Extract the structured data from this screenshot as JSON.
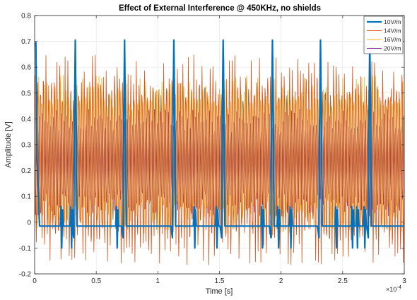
{
  "chart_data": {
    "type": "line",
    "title": "Effect of External Interference @ 450KHz, no shields",
    "xlabel": "Time [s]",
    "ylabel": "Amplitude [V]",
    "x_exponent_label": "×10",
    "x_exponent_power": "-4",
    "xlim": [
      0,
      3
    ],
    "ylim": [
      -0.2,
      0.8
    ],
    "x_tick_values": [
      0,
      0.5,
      1,
      1.5,
      2,
      2.5,
      3
    ],
    "x_tick_labels": [
      "0",
      "0.5",
      "1",
      "1.5",
      "2",
      "2.5",
      "3"
    ],
    "y_tick_values": [
      -0.2,
      -0.1,
      0,
      0.1,
      0.2,
      0.3,
      0.4,
      0.5,
      0.6,
      0.7,
      0.8
    ],
    "y_tick_labels": [
      "-0.2",
      "-0.1",
      "0",
      "0.1",
      "0.2",
      "0.3",
      "0.4",
      "0.5",
      "0.6",
      "0.7",
      "0.8"
    ],
    "grid": true,
    "legend_position": "top-right",
    "series": [
      {
        "name": "20V/m",
        "color": "#7E2F8E",
        "description": "sinusoid around 0.21 V oscillating between about 0.01 and 0.46 V",
        "x": [
          0.0,
          0.1,
          0.2,
          0.3,
          0.4,
          0.5,
          0.6,
          0.7,
          0.8,
          0.9,
          1.0,
          1.1,
          1.2,
          1.3,
          1.4,
          1.5,
          1.6,
          1.7,
          1.8,
          1.9,
          2.0,
          2.1,
          2.2,
          2.3,
          2.4,
          2.5,
          2.6,
          2.7,
          2.8,
          2.9,
          3.0
        ],
        "y": [
          0.21,
          0.44,
          0.03,
          0.41,
          0.02,
          0.43,
          0.05,
          0.4,
          0.02,
          0.44,
          0.04,
          0.42,
          0.03,
          0.41,
          0.05,
          0.44,
          0.02,
          0.4,
          0.04,
          0.43,
          0.03,
          0.42,
          0.05,
          0.41,
          0.02,
          0.44,
          0.04,
          0.4,
          0.03,
          0.43,
          0.21
        ]
      },
      {
        "name": "16V/m",
        "color": "#EDB120",
        "description": "sinusoid around 0.22 V oscillating between about -0.05 and 0.57 V",
        "x": [
          0.0,
          0.1,
          0.2,
          0.3,
          0.4,
          0.5,
          0.6,
          0.7,
          0.8,
          0.9,
          1.0,
          1.1,
          1.2,
          1.3,
          1.4,
          1.5,
          1.6,
          1.7,
          1.8,
          1.9,
          2.0,
          2.1,
          2.2,
          2.3,
          2.4,
          2.5,
          2.6,
          2.7,
          2.8,
          2.9,
          3.0
        ],
        "y": [
          0.22,
          0.55,
          -0.03,
          0.52,
          -0.05,
          0.57,
          -0.02,
          0.5,
          -0.04,
          0.56,
          -0.03,
          0.53,
          -0.05,
          0.55,
          -0.02,
          0.57,
          -0.04,
          0.51,
          -0.03,
          0.56,
          -0.05,
          0.54,
          -0.02,
          0.55,
          -0.04,
          0.57,
          -0.03,
          0.52,
          -0.05,
          0.56,
          0.22
        ]
      },
      {
        "name": "14V/m",
        "color": "#D95319",
        "description": "sinusoid around 0.24 V oscillating between about -0.17 and 0.65 V",
        "x": [
          0.0,
          0.1,
          0.2,
          0.3,
          0.4,
          0.5,
          0.6,
          0.7,
          0.8,
          0.9,
          1.0,
          1.1,
          1.2,
          1.3,
          1.4,
          1.5,
          1.6,
          1.7,
          1.8,
          1.9,
          2.0,
          2.1,
          2.2,
          2.3,
          2.4,
          2.5,
          2.6,
          2.7,
          2.8,
          2.9,
          3.0
        ],
        "y": [
          0.24,
          0.63,
          -0.15,
          0.6,
          -0.17,
          0.64,
          -0.14,
          0.61,
          -0.16,
          0.65,
          -0.15,
          0.62,
          -0.17,
          0.63,
          -0.14,
          0.65,
          -0.16,
          0.6,
          -0.15,
          0.64,
          -0.17,
          0.62,
          -0.14,
          0.63,
          -0.16,
          0.65,
          -0.15,
          0.61,
          -0.17,
          0.64,
          0.24
        ]
      },
      {
        "name": "10V/m",
        "color": "#0072BD",
        "description": "baseline near -0.015 V with periodic spikes reaching about 0.70 V",
        "spike_times": [
          0.0,
          0.33,
          0.73,
          1.13,
          1.53,
          1.93,
          2.32,
          2.72
        ],
        "spike_peak": 0.705,
        "baseline": -0.015,
        "small_pulse_times": [
          0.22,
          0.3,
          0.67,
          1.3,
          1.48,
          1.85,
          1.98,
          2.08,
          2.45,
          2.58,
          2.62,
          2.68
        ],
        "small_pulse_peak": 0.06,
        "small_pulse_trough": -0.1,
        "x": [
          0.0,
          0.02,
          0.05,
          0.3,
          0.32,
          0.33,
          0.34,
          0.36,
          0.7,
          0.72,
          0.73,
          0.74,
          0.76,
          1.1,
          1.12,
          1.13,
          1.14,
          1.16,
          1.5,
          1.52,
          1.53,
          1.54,
          1.56,
          1.9,
          1.92,
          1.93,
          1.94,
          1.96,
          2.29,
          2.31,
          2.32,
          2.33,
          2.35,
          2.69,
          2.71,
          2.72,
          2.73,
          2.75,
          3.0
        ],
        "y": [
          0.69,
          0.2,
          -0.015,
          -0.015,
          0.35,
          0.705,
          0.35,
          -0.015,
          -0.015,
          0.35,
          0.705,
          0.35,
          -0.015,
          -0.015,
          0.35,
          0.705,
          0.35,
          -0.015,
          -0.015,
          0.35,
          0.705,
          0.35,
          -0.015,
          -0.015,
          0.35,
          0.705,
          0.35,
          -0.015,
          -0.015,
          0.35,
          0.705,
          0.35,
          -0.015,
          -0.015,
          0.35,
          0.705,
          0.35,
          -0.015,
          -0.015
        ]
      }
    ],
    "legend_order": [
      "10V/m",
      "14V/m",
      "16V/m",
      "20V/m"
    ]
  }
}
